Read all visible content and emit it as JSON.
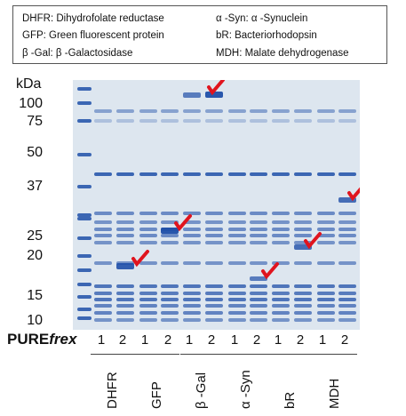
{
  "legend": {
    "dhfr": "DHFR: Dihydrofolate reductase",
    "gfp": "GFP: Green fluorescent protein",
    "bgal": "β -Gal: β -Galactosidase",
    "asyn": "α -Syn: α -Synuclein",
    "br": "bR: Bacteriorhodopsin",
    "mdh": "MDH: Malate dehydrogenase"
  },
  "marker": {
    "unit": "kDa",
    "sizes": [
      "100",
      "75",
      "50",
      "37",
      "25",
      "20",
      "15",
      "10"
    ]
  },
  "system_label": "PURE",
  "system_label_italic": "frex",
  "lanes": [
    "1",
    "2",
    "1",
    "2",
    "1",
    "2",
    "1",
    "2",
    "1",
    "2",
    "1",
    "2"
  ],
  "groups": [
    "DHFR",
    "GFP",
    "β -Gal",
    "α -Syn",
    "bR",
    "MDH"
  ],
  "colors": {
    "gel_background": "#dde6ef",
    "band": "#1f4fa8",
    "arrow": "#e0141e"
  }
}
